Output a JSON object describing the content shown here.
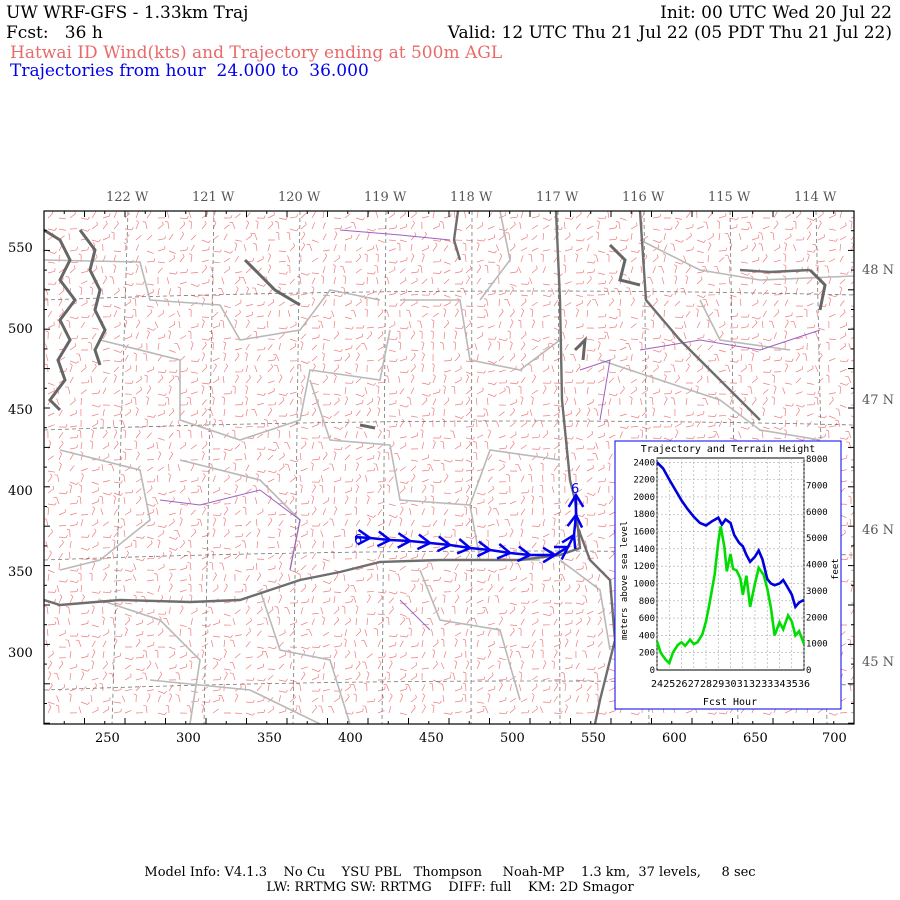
{
  "header": {
    "line1_left": "UW WRF-GFS - 1.33km Traj",
    "line1_right": "Init: 00 UTC Wed 20 Jul 22",
    "line2_left": "Fcst:   36 h",
    "line2_right": "Valid: 12 UTC Thu 21 Jul 22 (05 PDT Thu 21 Jul 22)",
    "line3": "Hatwai ID Wind(kts) and Trajectory ending at 500m AGL",
    "line4": "Trajectories from hour  24.000 to  36.000"
  },
  "lon_labels": [
    "122 W",
    "121 W",
    "120 W",
    "119 W",
    "118 W",
    "117 W",
    "116 W",
    "115 W",
    "114 W"
  ],
  "lat_labels": [
    "48 N",
    "47 N",
    "46 N",
    "45 N"
  ],
  "x_ticks": [
    "250",
    "300",
    "350",
    "400",
    "450",
    "500",
    "550",
    "600",
    "650",
    "700"
  ],
  "y_ticks": [
    "550",
    "500",
    "450",
    "400",
    "350",
    "300"
  ],
  "trajectory": {
    "start_label": "6",
    "end_label": "6",
    "color": "#0000ee"
  },
  "inset": {
    "title": "Trajectory and Terrain Height",
    "ylabel_left": "meters above sea level",
    "ylabel_right": "feet",
    "xlabel": "Fcst Hour",
    "y_left_ticks": [
      "0",
      "200",
      "400",
      "600",
      "800",
      "1000",
      "1200",
      "1400",
      "1600",
      "1800",
      "2000",
      "2200",
      "2400"
    ],
    "y_right_ticks": [
      "0",
      "1000",
      "2000",
      "3000",
      "4000",
      "5000",
      "6000",
      "7000",
      "8000"
    ],
    "x_ticks": [
      "24",
      "25",
      "26",
      "27",
      "28",
      "29",
      "30",
      "31",
      "32",
      "33",
      "34",
      "35",
      "36"
    ],
    "chart_data": {
      "type": "line",
      "xlim": [
        24,
        36
      ],
      "ylim": [
        0,
        2450
      ],
      "series": [
        {
          "color": "#0000dd",
          "x": [
            24,
            24.5,
            25,
            25.5,
            26,
            26.5,
            27,
            27.5,
            28,
            28.5,
            29,
            29.3,
            29.6,
            30,
            30.3,
            30.7,
            31,
            31.3,
            31.6,
            32,
            32.3,
            32.6,
            33,
            33.3,
            33.6,
            34,
            34.3,
            34.6,
            35,
            35.3,
            35.6,
            36
          ],
          "y": [
            2400,
            2330,
            2200,
            2080,
            1960,
            1860,
            1770,
            1700,
            1670,
            1720,
            1760,
            1680,
            1740,
            1700,
            1560,
            1470,
            1430,
            1330,
            1250,
            1310,
            1380,
            1280,
            1050,
            1000,
            980,
            1000,
            1040,
            970,
            870,
            730,
            780,
            810
          ]
        },
        {
          "color": "#00dd00",
          "x": [
            24,
            24.3,
            24.7,
            25,
            25.3,
            25.7,
            26,
            26.3,
            26.7,
            27,
            27.3,
            27.7,
            28,
            28.3,
            28.7,
            29,
            29.2,
            29.5,
            29.7,
            30,
            30.2,
            30.5,
            30.8,
            31,
            31.3,
            31.6,
            32,
            32.3,
            32.7,
            33,
            33.3,
            33.6,
            34,
            34.3,
            34.7,
            35,
            35.3,
            35.6,
            36
          ],
          "y": [
            330,
            200,
            120,
            80,
            200,
            290,
            320,
            280,
            350,
            300,
            320,
            410,
            560,
            780,
            1100,
            1480,
            1660,
            1420,
            1140,
            1340,
            1170,
            1150,
            1060,
            870,
            1090,
            730,
            1000,
            1180,
            1100,
            940,
            720,
            400,
            550,
            470,
            630,
            560,
            400,
            450,
            300
          ]
        }
      ]
    }
  },
  "footer": {
    "line1": "Model Info: V4.1.3    No Cu    YSU PBL   Thompson     Noah-MP    1.3 km,  37 levels,     8 sec",
    "line2": "LW: RRTMG SW: RRTMG    DIFF: full    KM: 2D Smagor"
  }
}
